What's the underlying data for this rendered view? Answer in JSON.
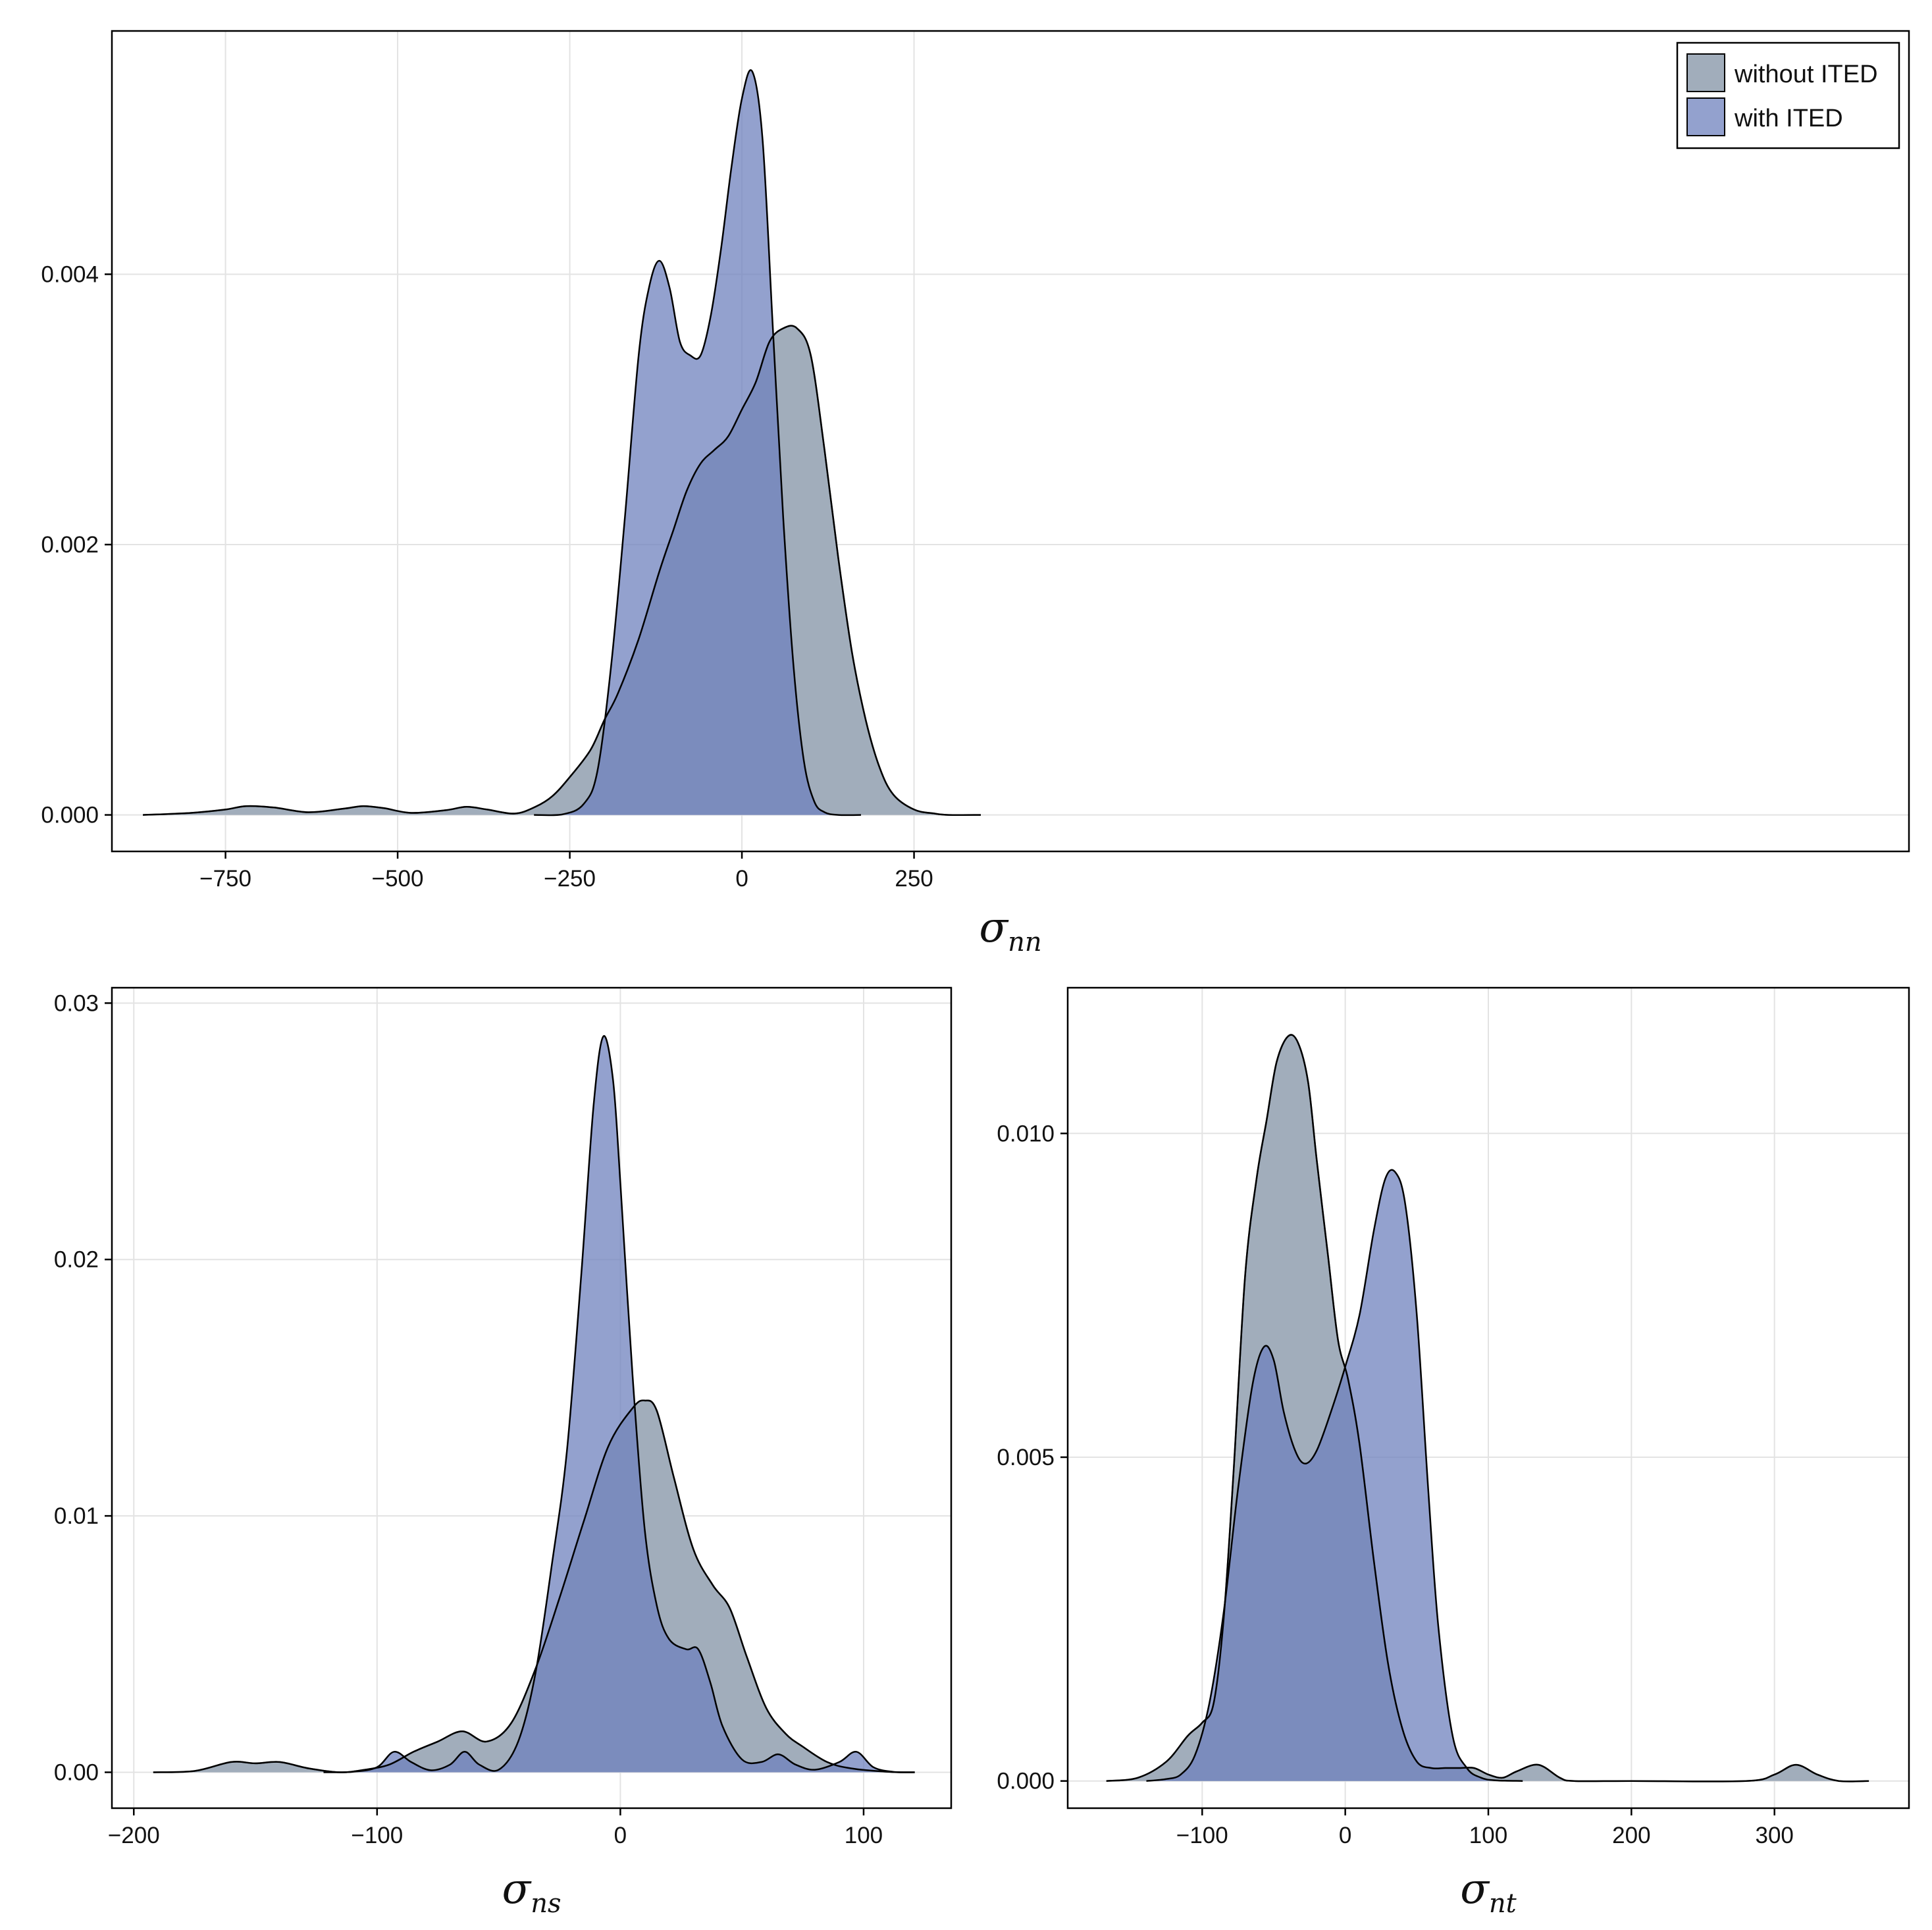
{
  "legend": [
    {
      "label": "without ITED",
      "color": "#A1ADBB"
    },
    {
      "label": "with ITED",
      "color": "#6F82BE"
    }
  ],
  "fill_opacity": {
    "without_ited": 1.0,
    "with_ited": 0.75
  },
  "chart_data": [
    {
      "id": "nn",
      "type": "area",
      "title": "",
      "xlabel": "σ",
      "xlabel_sub": "nn",
      "ylabel": "",
      "xlim": [
        -915,
        1695
      ],
      "ylim": [
        -0.00027,
        0.0058
      ],
      "xticks": [
        -750,
        -500,
        -250,
        0,
        250
      ],
      "xtick_labels": [
        "−750",
        "−500",
        "−250",
        "0",
        "250"
      ],
      "yticks": [
        0,
        0.002,
        0.004
      ],
      "ytick_labels": [
        "0.000",
        "0.002",
        "0.004"
      ],
      "grid": true,
      "legend_position": "top-right",
      "series": [
        {
          "name": "without ITED",
          "x": [
            -870,
            -800,
            -750,
            -720,
            -680,
            -630,
            -580,
            -550,
            -520,
            -480,
            -430,
            -400,
            -370,
            -330,
            -300,
            -275,
            -250,
            -220,
            -200,
            -180,
            -150,
            -120,
            -100,
            -80,
            -60,
            -40,
            -20,
            0,
            20,
            40,
            60,
            80,
            100,
            120,
            140,
            160,
            180,
            200,
            220,
            250,
            280,
            300,
            347
          ],
          "y": [
            0,
            1.5e-05,
            4e-05,
            6.5e-05,
            5.5e-05,
            2e-05,
            4.5e-05,
            6.5e-05,
            5e-05,
            1.5e-05,
            3.5e-05,
            6e-05,
            4e-05,
            1e-05,
            6e-05,
            0.00014,
            0.00028,
            0.00048,
            0.0007,
            0.0009,
            0.0013,
            0.0018,
            0.0021,
            0.0024,
            0.0026,
            0.0027,
            0.0028,
            0.003,
            0.0032,
            0.0035,
            0.0036,
            0.0036,
            0.0034,
            0.0027,
            0.0019,
            0.0012,
            0.0007,
            0.00035,
            0.00015,
            4e-05,
            1e-05,
            0,
            0
          ]
        },
        {
          "name": "with ITED",
          "x": [
            -302,
            -260,
            -230,
            -210,
            -190,
            -170,
            -150,
            -135,
            -120,
            -105,
            -90,
            -75,
            -60,
            -45,
            -30,
            -15,
            0,
            15,
            30,
            45,
            60,
            75,
            90,
            105,
            120,
            140,
            173
          ],
          "y": [
            0,
            5e-06,
            8e-05,
            0.00032,
            0.0011,
            0.0022,
            0.0034,
            0.0039,
            0.0041,
            0.0039,
            0.0035,
            0.0034,
            0.0034,
            0.0037,
            0.0042,
            0.0048,
            0.0053,
            0.0055,
            0.005,
            0.0036,
            0.0022,
            0.0011,
            0.0004,
            0.0001,
            2e-05,
            0,
            0
          ]
        }
      ]
    },
    {
      "id": "ns",
      "type": "area",
      "title": "",
      "xlabel": "σ",
      "xlabel_sub": "ns",
      "ylabel": "",
      "xlim": [
        -209,
        136
      ],
      "ylim": [
        -0.0014,
        0.0306
      ],
      "xticks": [
        -200,
        -100,
        0,
        100
      ],
      "xtick_labels": [
        "−200",
        "−100",
        "0",
        "100"
      ],
      "yticks": [
        0,
        0.01,
        0.02,
        0.03
      ],
      "ytick_labels": [
        "0.00",
        "0.01",
        "0.02",
        "0.03"
      ],
      "grid": true,
      "series": [
        {
          "name": "without ITED",
          "x": [
            -192,
            -175,
            -160,
            -150,
            -140,
            -128,
            -115,
            -105,
            -95,
            -85,
            -75,
            -65,
            -55,
            -45,
            -35,
            -25,
            -15,
            -5,
            5,
            10,
            15,
            22,
            30,
            38,
            45,
            52,
            60,
            68,
            75,
            85,
            95,
            110,
            121
          ],
          "y": [
            0,
            5e-05,
            0.0004,
            0.00035,
            0.0004,
            0.00015,
            0,
            0.0001,
            0.0003,
            0.0008,
            0.0012,
            0.0016,
            0.0012,
            0.0019,
            0.004,
            0.0068,
            0.0098,
            0.0127,
            0.0142,
            0.0145,
            0.0141,
            0.0115,
            0.0087,
            0.0073,
            0.0064,
            0.0045,
            0.0025,
            0.0015,
            0.001,
            0.0004,
            0.00015,
            2e-05,
            0
          ]
        },
        {
          "name": "with ITED",
          "x": [
            -122,
            -110,
            -100,
            -93,
            -86,
            -78,
            -70,
            -64,
            -58,
            -50,
            -42,
            -35,
            -28,
            -22,
            -16,
            -11,
            -7,
            -3,
            0,
            5,
            10,
            15,
            20,
            27,
            32,
            37,
            42,
            50,
            58,
            65,
            72,
            80,
            90,
            97,
            104,
            112,
            121
          ],
          "y": [
            0,
            2e-05,
            0.0002,
            0.0008,
            0.0004,
            8e-05,
            0.0003,
            0.0008,
            0.0003,
            0.0001,
            0.0012,
            0.0038,
            0.0082,
            0.0125,
            0.0195,
            0.026,
            0.0287,
            0.027,
            0.023,
            0.0155,
            0.0095,
            0.0065,
            0.0052,
            0.0048,
            0.0048,
            0.0035,
            0.0018,
            0.0005,
            0.0004,
            0.0007,
            0.0003,
            0.0001,
            0.0004,
            0.0008,
            0.0002,
            2e-05,
            0
          ]
        }
      ]
    },
    {
      "id": "nt",
      "type": "area",
      "title": "",
      "xlabel": "σ",
      "xlabel_sub": "nt",
      "ylabel": "",
      "xlim": [
        -194,
        394
      ],
      "ylim": [
        -0.00042,
        0.01225
      ],
      "xticks": [
        -100,
        0,
        100,
        200,
        300
      ],
      "xtick_labels": [
        "−100",
        "0",
        "100",
        "200",
        "300"
      ],
      "yticks": [
        0,
        0.005,
        0.01
      ],
      "ytick_labels": [
        "0.000",
        "0.005",
        "0.010"
      ],
      "grid": true,
      "series": [
        {
          "name": "without ITED",
          "x": [
            -167,
            -145,
            -125,
            -110,
            -100,
            -92,
            -85,
            -78,
            -70,
            -62,
            -55,
            -48,
            -40,
            -33,
            -26,
            -20,
            -12,
            -5,
            2,
            10,
            20,
            30,
            40,
            50,
            60,
            70,
            80,
            90,
            100,
            110,
            120,
            135,
            150,
            160,
            200,
            280,
            300,
            315,
            330,
            345,
            366
          ],
          "y": [
            0,
            5e-05,
            0.0003,
            0.0007,
            0.0009,
            0.0012,
            0.0025,
            0.0048,
            0.0078,
            0.0093,
            0.0102,
            0.0111,
            0.0115,
            0.0114,
            0.0108,
            0.0096,
            0.0081,
            0.0068,
            0.0062,
            0.0052,
            0.0034,
            0.0018,
            0.0008,
            0.0003,
            0.0002,
            0.0002,
            0.0002,
            0.0002,
            0.0001,
            5e-05,
            0.00015,
            0.00025,
            5e-05,
            0,
            0,
            0,
            0.0001,
            0.00025,
            0.0001,
            0,
            0
          ]
        },
        {
          "name": "with ITED",
          "x": [
            -139,
            -125,
            -115,
            -105,
            -95,
            -85,
            -75,
            -65,
            -57,
            -50,
            -43,
            -35,
            -28,
            -20,
            -10,
            0,
            10,
            20,
            28,
            35,
            42,
            50,
            58,
            65,
            75,
            85,
            95,
            105,
            124
          ],
          "y": [
            0,
            3e-05,
            0.0001,
            0.0004,
            0.0012,
            0.0026,
            0.0045,
            0.0061,
            0.0067,
            0.0065,
            0.0057,
            0.0051,
            0.0049,
            0.0051,
            0.0057,
            0.0064,
            0.0072,
            0.0085,
            0.0093,
            0.0094,
            0.0089,
            0.0072,
            0.0045,
            0.0024,
            0.0007,
            0.0002,
            5e-05,
            1e-05,
            0
          ]
        }
      ]
    }
  ]
}
